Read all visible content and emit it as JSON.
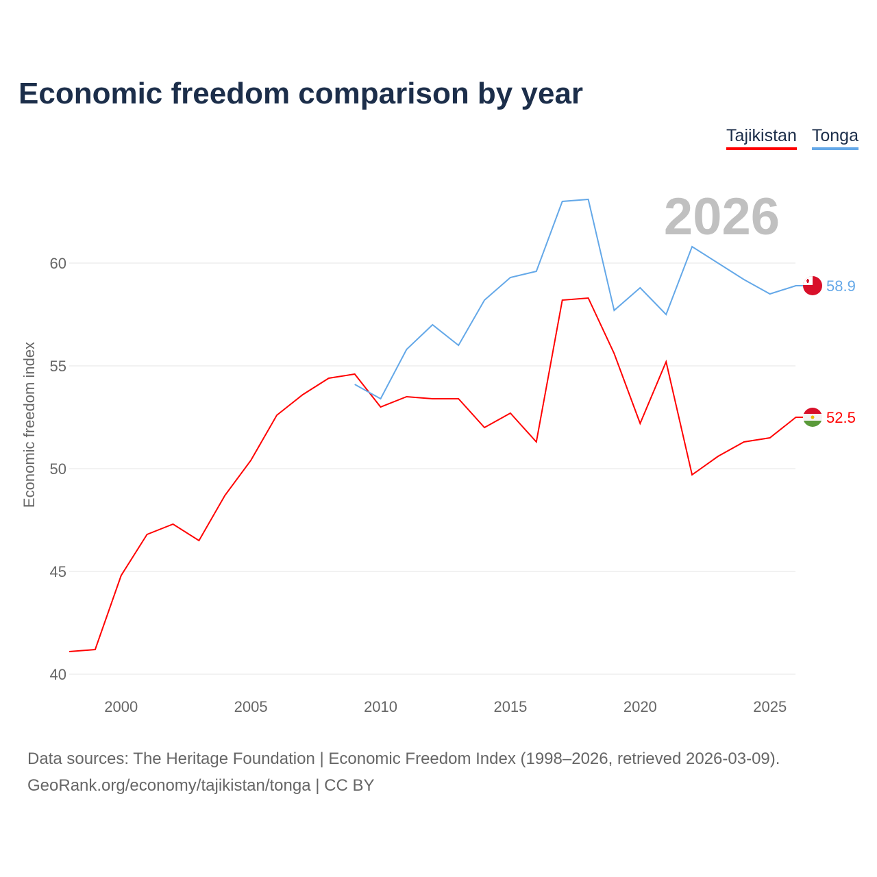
{
  "title": "Economic freedom comparison by year",
  "legend": [
    {
      "label": "Tajikistan",
      "color": "#ff0000"
    },
    {
      "label": "Tonga",
      "color": "#64a8e8"
    }
  ],
  "footer": {
    "line1": "Data sources: The Heritage Foundation | Economic Freedom Index (1998–2026, retrieved 2026-03-09).",
    "line2": "GeoRank.org/economy/tajikistan/tonga | CC BY"
  },
  "chart_data": {
    "type": "line",
    "title": "Economic freedom comparison by year",
    "ylabel": "Economic freedom index",
    "xlabel": "",
    "year_label": "2026",
    "xlim": [
      1998,
      2026
    ],
    "ylim": [
      40,
      63.5
    ],
    "xticks": [
      2000,
      2005,
      2010,
      2015,
      2020,
      2025
    ],
    "yticks": [
      40,
      45,
      50,
      55,
      60
    ],
    "grid": true,
    "series": [
      {
        "name": "Tajikistan",
        "color": "#ff0000",
        "end_label": "52.5",
        "x": [
          1998,
          1999,
          2000,
          2001,
          2002,
          2003,
          2004,
          2005,
          2006,
          2007,
          2008,
          2009,
          2010,
          2011,
          2012,
          2013,
          2014,
          2015,
          2016,
          2017,
          2018,
          2019,
          2020,
          2021,
          2022,
          2023,
          2024,
          2025,
          2026
        ],
        "values": [
          41.1,
          41.2,
          44.8,
          46.8,
          47.3,
          46.5,
          48.7,
          50.4,
          52.6,
          53.6,
          54.4,
          54.6,
          53.0,
          53.5,
          53.4,
          53.4,
          52.0,
          52.7,
          51.3,
          58.2,
          58.3,
          55.6,
          52.2,
          55.2,
          49.7,
          50.6,
          51.3,
          51.5,
          52.5
        ]
      },
      {
        "name": "Tonga",
        "color": "#64a8e8",
        "end_label": "58.9",
        "x": [
          2009,
          2010,
          2011,
          2012,
          2013,
          2014,
          2015,
          2016,
          2017,
          2018,
          2019,
          2020,
          2021,
          2022,
          2023,
          2024,
          2025,
          2026
        ],
        "values": [
          54.1,
          53.4,
          55.8,
          57.0,
          56.0,
          58.2,
          59.3,
          59.6,
          63.0,
          63.1,
          57.7,
          58.8,
          57.5,
          60.8,
          60.0,
          59.2,
          58.5,
          58.9
        ]
      }
    ]
  }
}
